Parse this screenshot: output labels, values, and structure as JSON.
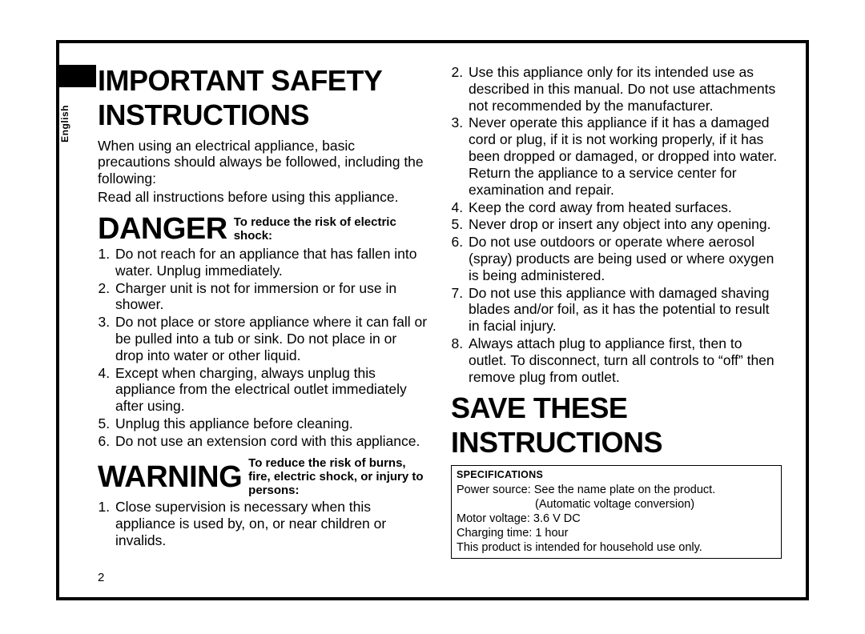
{
  "page_number": "2",
  "language_tab": "English",
  "heading_main": "IMPORTANT SAFETY INSTRUCTIONS",
  "intro": "When using an electrical appliance, basic precautions should always be followed, including the following:",
  "read_all": "Read all instructions before using this appliance.",
  "danger_word": "DANGER",
  "danger_sub": "To reduce the risk of electric shock:",
  "danger_items": [
    "Do not reach for an appliance that has fallen into water. Unplug immediately.",
    "Charger unit is not for immersion or for use in shower.",
    "Do not place or store appliance where it can fall or be pulled into a tub or sink. Do not place in or drop into water or other liquid.",
    "Except when charging, always unplug this appliance from the electrical outlet immediately after using.",
    "Unplug this appliance before cleaning.",
    "Do not use an extension cord with this appliance."
  ],
  "warning_word": "WARNING",
  "warning_sub": "To reduce the risk of burns, fire, electric shock, or injury to persons:",
  "warning_items": [
    "Close supervision is necessary when this appliance is used by, on, or near children or invalids.",
    "Use this appliance only for its intended use as described in this manual. Do not use attachments not recommended by the manufacturer.",
    "Never operate this appliance if it has a damaged cord or plug, if it is not working properly, if it has been dropped or damaged, or dropped into water. Return the appliance to a service center for examination and repair.",
    "Keep the cord away from heated surfaces.",
    "Never drop or insert any object into any opening.",
    "Do not use outdoors or operate where aerosol (spray) products are being used or where oxygen is being administered.",
    "Do not use this appliance with damaged shaving blades and/or foil, as it has the potential to result in facial injury.",
    "Always attach plug to appliance first, then to outlet. To disconnect, turn all controls to “off” then remove plug from outlet."
  ],
  "heading_save": "SAVE THESE INSTRUCTIONS",
  "spec": {
    "title": "SPECIFICATIONS",
    "power1": "Power source: See the name plate on the product.",
    "power2": "(Automatic voltage conversion)",
    "motor": "Motor voltage: 3.6 V DC",
    "charge": "Charging time: 1 hour",
    "household": "This product is intended for household use only."
  }
}
